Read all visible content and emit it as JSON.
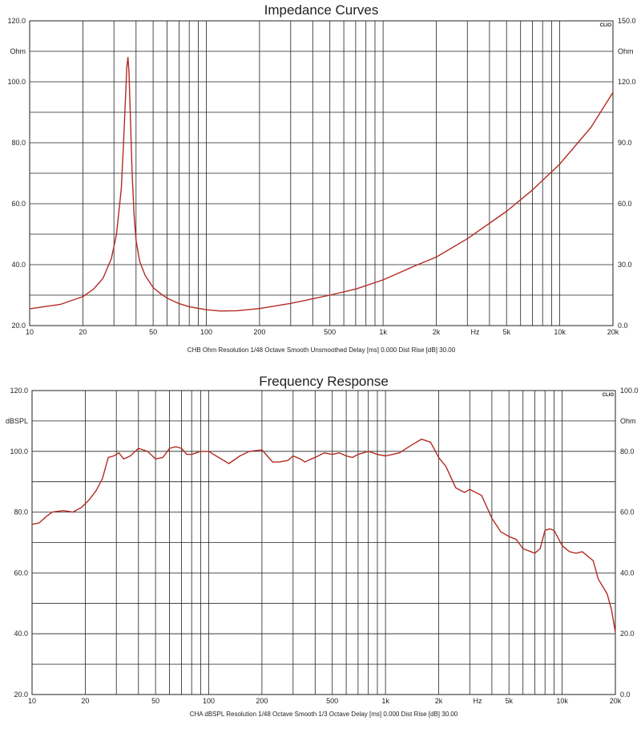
{
  "chart_data": [
    {
      "type": "line",
      "title": "Impedance Curves",
      "brand": "CLIO",
      "footer": "CHB Ohm Resolution 1/48 Octave Smooth Unsmoothed Delay [ms] 0.000 Dist Rise [dB] 30.00",
      "x_scale": "log",
      "xlim": [
        10,
        20000
      ],
      "x_ticks": [
        {
          "value": 10,
          "label": "10"
        },
        {
          "value": 20,
          "label": "20"
        },
        {
          "value": 50,
          "label": "50"
        },
        {
          "value": 100,
          "label": "100"
        },
        {
          "value": 200,
          "label": "200"
        },
        {
          "value": 500,
          "label": "500"
        },
        {
          "value": 1000,
          "label": "1k"
        },
        {
          "value": 2000,
          "label": "2k"
        },
        {
          "value": 5000,
          "label": "5k"
        },
        {
          "value": 10000,
          "label": "10k"
        },
        {
          "value": 20000,
          "label": "20k"
        }
      ],
      "x_unit": "Hz",
      "y_left": {
        "ylim": [
          20,
          120
        ],
        "unit": "Ohm",
        "ticks": [
          {
            "value": 20,
            "label": "20.0"
          },
          {
            "value": 40,
            "label": "40.0"
          },
          {
            "value": 60,
            "label": "60.0"
          },
          {
            "value": 80,
            "label": "80.0"
          },
          {
            "value": 100,
            "label": "100.0"
          },
          {
            "value": 120,
            "label": "120.0"
          }
        ]
      },
      "y_right": {
        "ylim": [
          0,
          150
        ],
        "unit": "Ohm",
        "ticks": [
          {
            "value": 0,
            "label": "0.0"
          },
          {
            "value": 30,
            "label": "30.0"
          },
          {
            "value": 60,
            "label": "60.0"
          },
          {
            "value": 90,
            "label": "90.0"
          },
          {
            "value": 120,
            "label": "120.0"
          },
          {
            "value": 150,
            "label": "150.0"
          }
        ]
      },
      "grid": true,
      "series": [
        {
          "color": "#b22b22",
          "x": [
            10,
            15,
            20,
            23,
            26,
            29,
            31,
            33,
            34,
            35,
            35.5,
            36,
            36.5,
            37,
            38,
            39,
            40,
            42,
            45,
            50,
            55,
            60,
            70,
            80,
            100,
            120,
            150,
            200,
            300,
            400,
            500,
            700,
            1000,
            1500,
            2000,
            3000,
            5000,
            7000,
            10000,
            15000,
            20000
          ],
          "y": [
            25.5,
            27,
            29.5,
            32,
            35.5,
            42,
            50,
            65,
            80,
            97,
            105,
            108,
            103,
            92,
            70,
            56,
            48,
            41,
            36.5,
            32.5,
            30.5,
            29,
            27.2,
            26.2,
            25.2,
            24.8,
            24.9,
            25.6,
            27.3,
            28.8,
            30,
            32,
            35,
            39.5,
            42.5,
            48.5,
            57.5,
            64.5,
            73,
            85,
            96.5
          ]
        }
      ]
    },
    {
      "type": "line",
      "title": "Frequency Response",
      "brand": "CLIO",
      "footer": "CHA dBSPL Resolution 1/48 Octave Smooth 1/3 Octave Delay [ms] 0.000 Dist Rise [dB] 30.00",
      "x_scale": "log",
      "xlim": [
        10,
        20000
      ],
      "x_ticks": [
        {
          "value": 10,
          "label": "10"
        },
        {
          "value": 20,
          "label": "20"
        },
        {
          "value": 50,
          "label": "50"
        },
        {
          "value": 100,
          "label": "100"
        },
        {
          "value": 200,
          "label": "200"
        },
        {
          "value": 500,
          "label": "500"
        },
        {
          "value": 1000,
          "label": "1k"
        },
        {
          "value": 2000,
          "label": "2k"
        },
        {
          "value": 5000,
          "label": "5k"
        },
        {
          "value": 10000,
          "label": "10k"
        },
        {
          "value": 20000,
          "label": "20k"
        }
      ],
      "x_unit": "Hz",
      "y_left": {
        "ylim": [
          20,
          120
        ],
        "unit": "dBSPL",
        "ticks": [
          {
            "value": 20,
            "label": "20.0"
          },
          {
            "value": 40,
            "label": "40.0"
          },
          {
            "value": 60,
            "label": "60.0"
          },
          {
            "value": 80,
            "label": "80.0"
          },
          {
            "value": 100,
            "label": "100.0"
          },
          {
            "value": 120,
            "label": "120.0"
          }
        ]
      },
      "y_right": {
        "ylim": [
          0,
          100
        ],
        "unit": "Ohm",
        "ticks": [
          {
            "value": 0,
            "label": "0.0"
          },
          {
            "value": 20,
            "label": "20.0"
          },
          {
            "value": 40,
            "label": "40.0"
          },
          {
            "value": 60,
            "label": "60.0"
          },
          {
            "value": 80,
            "label": "80.0"
          },
          {
            "value": 100,
            "label": "100.0"
          }
        ]
      },
      "grid": true,
      "series": [
        {
          "color": "#b22b22",
          "x": [
            10,
            11,
            12,
            13,
            15,
            17,
            19,
            21,
            23,
            25,
            27,
            29,
            31,
            33,
            36,
            40,
            45,
            50,
            55,
            60,
            65,
            70,
            75,
            80,
            90,
            100,
            110,
            130,
            150,
            170,
            200,
            230,
            250,
            280,
            300,
            330,
            350,
            380,
            400,
            450,
            500,
            550,
            600,
            650,
            700,
            800,
            900,
            1000,
            1100,
            1200,
            1400,
            1600,
            1800,
            2000,
            2200,
            2500,
            2800,
            3000,
            3500,
            4000,
            4500,
            5000,
            5500,
            6000,
            7000,
            7500,
            8000,
            8500,
            9000,
            10000,
            11000,
            12000,
            13000,
            15000,
            16000,
            17000,
            18000,
            19000,
            20000
          ],
          "y": [
            76,
            76.5,
            78.5,
            80,
            80.5,
            80,
            81.5,
            84,
            87,
            91,
            98,
            98.5,
            99.5,
            97.5,
            98.5,
            101,
            100,
            97.5,
            98,
            101,
            101.5,
            101,
            99,
            99,
            100,
            100,
            98.5,
            96,
            98.5,
            100,
            100.5,
            96.5,
            96.5,
            97,
            98.5,
            97.5,
            96.5,
            97.5,
            98,
            99.5,
            99,
            99.5,
            98.5,
            98,
            99,
            100,
            99,
            98.5,
            99,
            99.5,
            102,
            104,
            103,
            98,
            95,
            88,
            86.5,
            87.5,
            85.5,
            78,
            73.5,
            72,
            71,
            68,
            66.5,
            68,
            74,
            74.5,
            74,
            69,
            67,
            66.5,
            67,
            64,
            58,
            55.5,
            53,
            48,
            40.5
          ]
        }
      ]
    }
  ]
}
